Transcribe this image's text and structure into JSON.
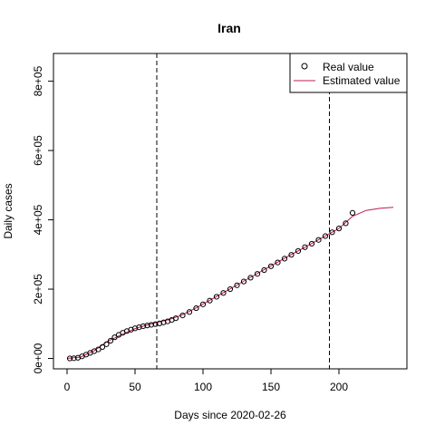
{
  "chart_data": {
    "type": "line",
    "title": "Iran",
    "xlabel": "Days since 2020-02-26",
    "ylabel": "Daily cases",
    "xlim": [
      -10,
      250
    ],
    "ylim": [
      -30000,
      880000
    ],
    "x_ticks": [
      0,
      50,
      100,
      150,
      200
    ],
    "x_tick_labels": [
      "0",
      "50",
      "100",
      "150",
      "200"
    ],
    "y_ticks": [
      0,
      200000,
      400000,
      600000,
      800000
    ],
    "y_tick_labels": [
      "0e+00",
      "2e+05",
      "4e+05",
      "6e+05",
      "8e+05"
    ],
    "vlines": [
      66,
      193
    ],
    "legend": {
      "position": "top-right",
      "entries": [
        {
          "label": "Real value",
          "marker": "open-circle",
          "color": "#000000"
        },
        {
          "label": "Estimated value",
          "marker": "line",
          "color": "#c2185b"
        }
      ]
    },
    "series": [
      {
        "name": "Real value",
        "kind": "points",
        "color": "#000000",
        "x": [
          2,
          5,
          8,
          11,
          14,
          17,
          20,
          23,
          26,
          29,
          32,
          35,
          38,
          41,
          44,
          47,
          50,
          53,
          56,
          59,
          62,
          65,
          68,
          71,
          74,
          77,
          80,
          85,
          90,
          95,
          100,
          105,
          110,
          115,
          120,
          125,
          130,
          135,
          140,
          145,
          150,
          155,
          160,
          165,
          170,
          175,
          180,
          185,
          190,
          195,
          200,
          205,
          210
        ],
        "y": [
          0,
          500,
          2000,
          6000,
          11000,
          16000,
          21000,
          26000,
          33000,
          41000,
          51000,
          61000,
          68000,
          74000,
          79000,
          83000,
          87000,
          90000,
          93000,
          95000,
          97000,
          99000,
          101000,
          104000,
          107000,
          111000,
          116000,
          124000,
          134000,
          145000,
          156000,
          167000,
          178000,
          189000,
          200000,
          211000,
          222000,
          233000,
          244000,
          255000,
          266000,
          277000,
          288000,
          299000,
          310000,
          321000,
          331000,
          342000,
          353000,
          364000,
          375000,
          390000,
          420000
        ]
      },
      {
        "name": "Estimated value",
        "kind": "line",
        "color": "#c2185b",
        "x": [
          0,
          10,
          20,
          30,
          40,
          50,
          60,
          66,
          75,
          85,
          95,
          105,
          115,
          125,
          135,
          145,
          155,
          165,
          175,
          185,
          193,
          200,
          210,
          220,
          230,
          240
        ],
        "y": [
          0,
          4000,
          22000,
          50000,
          68000,
          86000,
          98000,
          104000,
          112000,
          126000,
          146000,
          168000,
          190000,
          212000,
          234000,
          256000,
          278000,
          300000,
          321000,
          343000,
          360000,
          375000,
          410000,
          427000,
          433000,
          436000
        ]
      }
    ]
  }
}
